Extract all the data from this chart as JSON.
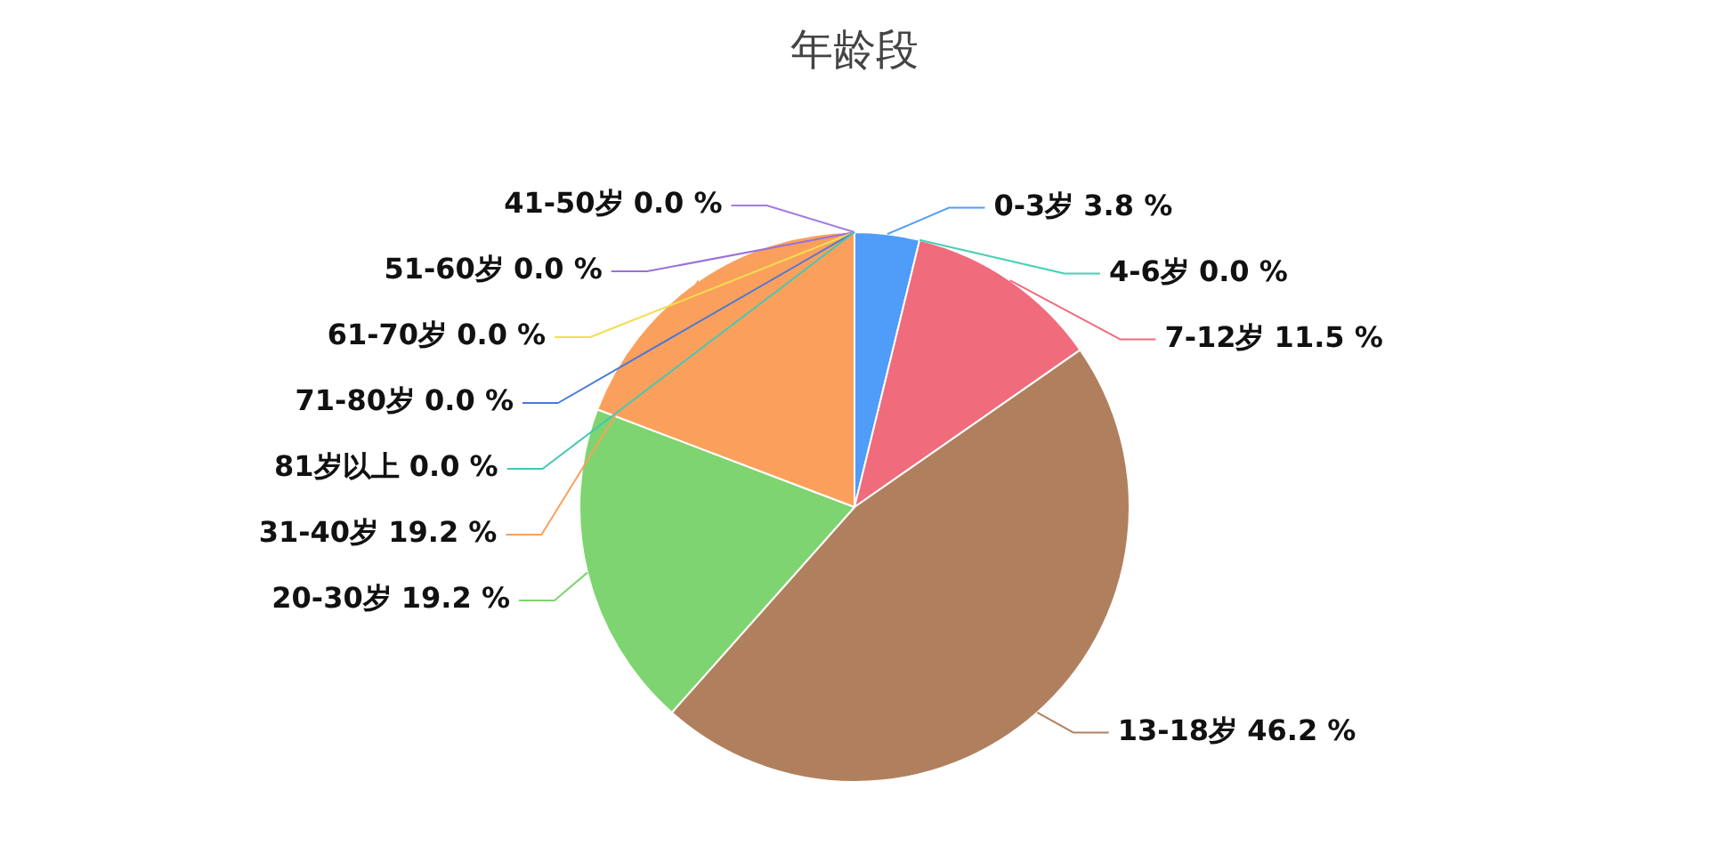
{
  "chart_data": {
    "type": "pie",
    "title": "年龄段",
    "categories": [
      "0-3岁",
      "4-6岁",
      "7-12岁",
      "13-18岁",
      "20-30岁",
      "31-40岁",
      "41-50岁",
      "51-60岁",
      "61-70岁",
      "71-80岁",
      "81岁以上"
    ],
    "values": [
      3.8,
      0.0,
      11.5,
      46.2,
      19.2,
      19.2,
      0.0,
      0.0,
      0.0,
      0.0,
      0.0
    ],
    "value_labels": [
      "3.8 %",
      "0.0 %",
      "11.5 %",
      "46.2 %",
      "19.2 %",
      "19.2 %",
      "0.0 %",
      "0.0 %",
      "0.0 %",
      "0.0 %",
      "0.0 %"
    ],
    "colors": [
      "#4f9cf9",
      "#45d0b4",
      "#f06b7c",
      "#b0805e",
      "#7ed470",
      "#fba05c",
      "#a07be8",
      "#9a70d8",
      "#f2de50",
      "#4a78d8",
      "#45c7b5"
    ]
  }
}
